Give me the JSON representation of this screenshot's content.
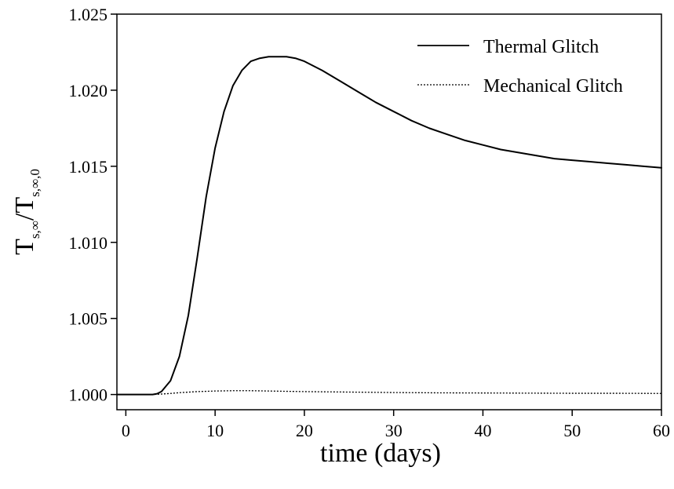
{
  "chart_data": {
    "type": "line",
    "title": "",
    "xlabel": "time (days)",
    "ylabel": {
      "base": "T",
      "sub_1": "s,∞",
      "separator": "/",
      "base_2": "T",
      "sub_2": "s,∞,0"
    },
    "xlim": [
      -1,
      60
    ],
    "ylim": [
      0.999,
      1.025
    ],
    "x_ticks": [
      0,
      10,
      20,
      30,
      40,
      50,
      60
    ],
    "x_tick_labels": [
      "0",
      "10",
      "20",
      "30",
      "40",
      "50",
      "60"
    ],
    "y_ticks": [
      1.0,
      1.005,
      1.01,
      1.015,
      1.02,
      1.025
    ],
    "y_tick_labels": [
      "1.000",
      "1.005",
      "1.010",
      "1.015",
      "1.020",
      "1.025"
    ],
    "legend_position": "top-right",
    "series": [
      {
        "name": "Thermal Glitch",
        "style": "solid",
        "x": [
          -1,
          0,
          2,
          3,
          3.5,
          4,
          5,
          6,
          7,
          8,
          9,
          10,
          11,
          12,
          13,
          14,
          15,
          16,
          17,
          18,
          19,
          20,
          22,
          24,
          26,
          28,
          30,
          32,
          34,
          36,
          38,
          40,
          42,
          44,
          46,
          48,
          50,
          52,
          54,
          56,
          58,
          60
        ],
        "y": [
          1.0,
          1.0,
          1.0,
          1.0,
          1.00005,
          1.0002,
          1.0009,
          1.0025,
          1.0052,
          1.009,
          1.013,
          1.0162,
          1.0186,
          1.0203,
          1.0213,
          1.0219,
          1.0221,
          1.0222,
          1.0222,
          1.0222,
          1.0221,
          1.0219,
          1.0213,
          1.0206,
          1.0199,
          1.0192,
          1.0186,
          1.018,
          1.0175,
          1.0171,
          1.0167,
          1.0164,
          1.0161,
          1.0159,
          1.0157,
          1.0155,
          1.0154,
          1.0153,
          1.0152,
          1.0151,
          1.015,
          1.0149
        ]
      },
      {
        "name": "Mechanical Glitch",
        "style": "dotted",
        "x": [
          -1,
          0,
          2,
          3,
          4,
          5,
          6,
          8,
          10,
          12,
          13,
          14,
          16,
          18,
          20,
          25,
          30,
          35,
          40,
          45,
          50,
          55,
          60
        ],
        "y": [
          1.0,
          1.0,
          1.0,
          1.0,
          1.00003,
          1.00007,
          1.00012,
          1.00019,
          1.00023,
          1.00025,
          1.00025,
          1.00025,
          1.00023,
          1.00021,
          1.00019,
          1.00016,
          1.00013,
          1.00011,
          1.0001,
          1.00009,
          1.00008,
          1.00008,
          1.00007
        ]
      }
    ]
  }
}
